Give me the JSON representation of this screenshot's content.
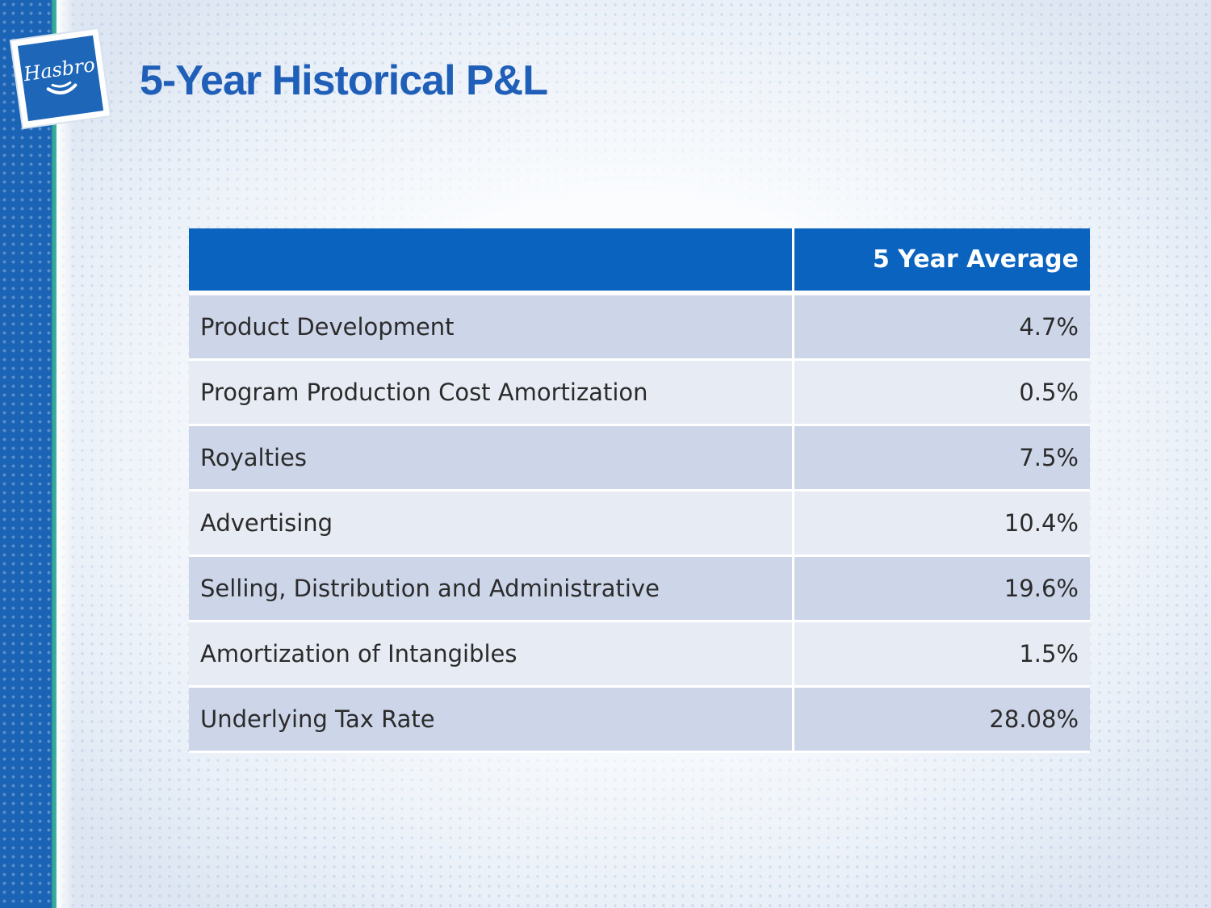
{
  "logo": {
    "text": "Hasbro"
  },
  "title": "5-Year Historical P&L",
  "table": {
    "headers": [
      "",
      "5 Year Average"
    ],
    "rows": [
      {
        "label": "Product Development",
        "value": "4.7%"
      },
      {
        "label": "Program Production Cost Amortization",
        "value": "0.5%"
      },
      {
        "label": "Royalties",
        "value": "7.5%"
      },
      {
        "label": "Advertising",
        "value": "10.4%"
      },
      {
        "label": "Selling, Distribution and Administrative",
        "value": "19.6%"
      },
      {
        "label": "Amortization of Intangibles",
        "value": "1.5%"
      },
      {
        "label": "Underlying Tax Rate",
        "value": "28.08%"
      }
    ]
  },
  "colors": {
    "brand_blue": "#0a63bf",
    "title_blue": "#1f5fb8",
    "accent_teal": "#3fb3a6",
    "row_dark": "#cdd6e9",
    "row_light": "#e7ebf4"
  }
}
